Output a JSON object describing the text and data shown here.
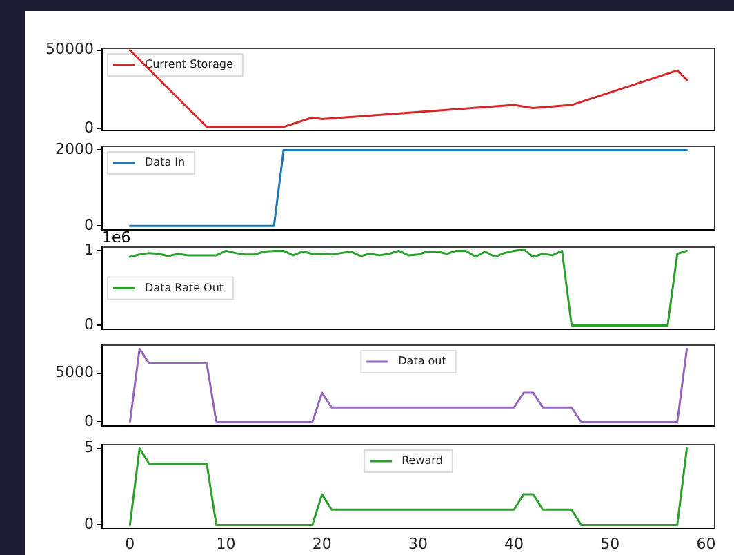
{
  "chart_data": [
    {
      "type": "line",
      "xlim": [
        -2.9,
        60.9
      ],
      "xticks": [
        0,
        10,
        20,
        30,
        40,
        50,
        60
      ],
      "ylim": [
        -1200,
        51200
      ],
      "yticks": [
        0,
        50000
      ],
      "legend": "top left",
      "tick_labels": "y",
      "marker": "none",
      "series": [
        {
          "name": "Current Storage",
          "color": "#d62728",
          "x": [
            0,
            8,
            16,
            19,
            20,
            40,
            42,
            46,
            57,
            58
          ],
          "values": [
            50000,
            1000,
            1000,
            7000,
            6000,
            15000,
            13000,
            15000,
            37000,
            31000
          ]
        }
      ]
    },
    {
      "type": "line",
      "xlim": [
        -2.9,
        60.9
      ],
      "xticks": [
        0,
        10,
        20,
        30,
        40,
        50,
        60
      ],
      "ylim": [
        -100,
        2100
      ],
      "yticks": [
        0,
        2000
      ],
      "legend": "top left",
      "tick_labels": "y",
      "marker": "none",
      "series": [
        {
          "name": "Data In",
          "color": "#1f77b4",
          "x": [
            0,
            15,
            16,
            58
          ],
          "values": [
            0,
            0,
            2000,
            2000
          ]
        }
      ]
    },
    {
      "type": "line",
      "xlim": [
        -2.9,
        60.9
      ],
      "xticks": [
        0,
        10,
        20,
        30,
        40,
        50,
        60
      ],
      "ylim": [
        -0.05,
        1.05
      ],
      "yticks": [
        0,
        1
      ],
      "legend": "center left",
      "tick_labels": "y",
      "marker": "none",
      "annotations": [
        "1e6"
      ],
      "series": [
        {
          "name": "Data Rate Out",
          "color": "#2ca02c",
          "x": [
            0,
            1,
            2,
            3,
            4,
            5,
            6,
            7,
            8,
            9,
            10,
            11,
            12,
            13,
            14,
            15,
            16,
            17,
            18,
            19,
            20,
            21,
            22,
            23,
            24,
            25,
            26,
            27,
            28,
            29,
            30,
            31,
            32,
            33,
            34,
            35,
            36,
            37,
            38,
            39,
            40,
            41,
            42,
            43,
            44,
            45,
            46,
            47,
            48,
            49,
            50,
            51,
            52,
            53,
            54,
            55,
            56,
            57,
            58
          ],
          "values": [
            0.92,
            0.95,
            0.97,
            0.96,
            0.93,
            0.96,
            0.94,
            0.94,
            0.94,
            0.94,
            1.0,
            0.97,
            0.95,
            0.95,
            0.99,
            1.0,
            1.0,
            0.94,
            0.99,
            0.96,
            0.96,
            0.95,
            0.97,
            0.99,
            0.93,
            0.96,
            0.94,
            0.96,
            1.0,
            0.94,
            0.95,
            0.99,
            0.99,
            0.96,
            1.0,
            1.0,
            0.92,
            0.99,
            0.92,
            0.97,
            1.0,
            1.02,
            0.92,
            0.96,
            0.94,
            1.0,
            0,
            0,
            0,
            0,
            0,
            0,
            0,
            0,
            0,
            0,
            0,
            0.96,
            1.0
          ]
        }
      ]
    },
    {
      "type": "line",
      "xlim": [
        -2.9,
        60.9
      ],
      "xticks": [
        0,
        10,
        20,
        30,
        40,
        50,
        60
      ],
      "ylim": [
        -375,
        7875
      ],
      "yticks": [
        0,
        5000
      ],
      "legend": "top center",
      "tick_labels": "y",
      "marker": "none",
      "series": [
        {
          "name": "Data out",
          "color": "#9467bd",
          "x": [
            0,
            1,
            2,
            8,
            9,
            19,
            20,
            21,
            40,
            41,
            42,
            43,
            46,
            47,
            57,
            58
          ],
          "values": [
            0,
            7500,
            6000,
            6000,
            0,
            0,
            3000,
            1500,
            1500,
            3000,
            3000,
            1500,
            1500,
            0,
            0,
            7500
          ]
        }
      ]
    },
    {
      "type": "line",
      "xlim": [
        -2.9,
        60.9
      ],
      "xticks": [
        0,
        10,
        20,
        30,
        40,
        50,
        60
      ],
      "ylim": [
        -0.25,
        5.25
      ],
      "yticks": [
        0,
        5
      ],
      "legend": "top center",
      "marker": "none",
      "series": [
        {
          "name": "Reward",
          "color": "#2ca02c",
          "x": [
            0,
            1,
            2,
            8,
            9,
            19,
            20,
            21,
            40,
            41,
            42,
            43,
            46,
            47,
            57,
            58
          ],
          "values": [
            0,
            5,
            4,
            4,
            0,
            0,
            2,
            1,
            1,
            2,
            2,
            1,
            1,
            0,
            0,
            5
          ]
        }
      ]
    }
  ]
}
